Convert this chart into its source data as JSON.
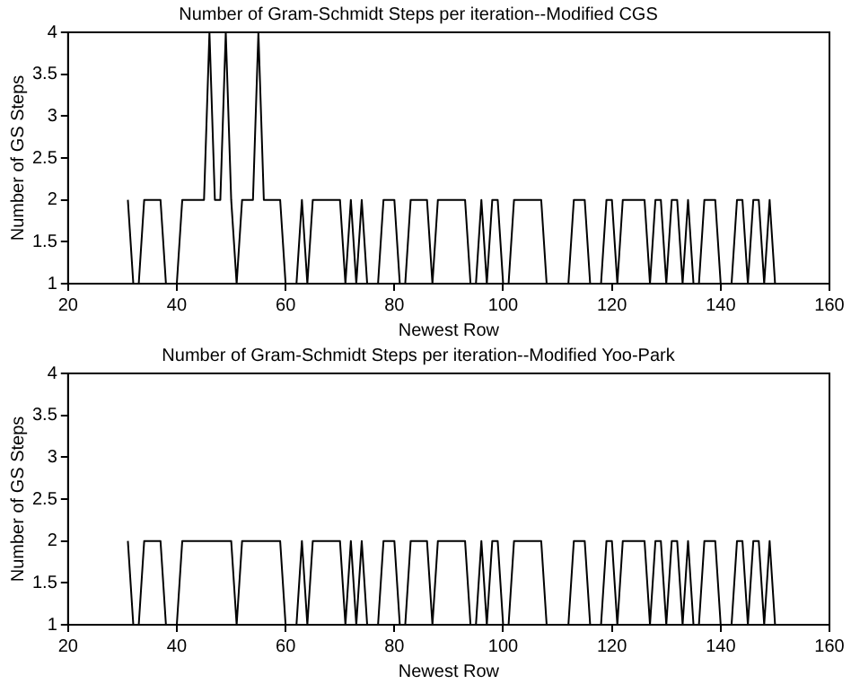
{
  "chart_data": [
    {
      "type": "line",
      "title": "Number of Gram-Schmidt Steps per iteration--Modified CGS",
      "xlabel": "Newest Row",
      "ylabel": "Number of GS Steps",
      "xlim": [
        20,
        160
      ],
      "xticks": [
        20,
        40,
        60,
        80,
        100,
        120,
        140,
        160
      ],
      "ylim": [
        1,
        4
      ],
      "yticks": [
        1,
        1.5,
        2,
        2.5,
        3,
        3.5,
        4
      ],
      "marker": "none",
      "line_style": "solid",
      "x": [
        31,
        32,
        33,
        34,
        35,
        36,
        37,
        38,
        39,
        40,
        41,
        42,
        43,
        44,
        45,
        46,
        47,
        48,
        49,
        50,
        51,
        52,
        53,
        54,
        55,
        56,
        57,
        58,
        59,
        60,
        61,
        62,
        63,
        64,
        65,
        66,
        67,
        68,
        69,
        70,
        71,
        72,
        73,
        74,
        75,
        76,
        77,
        78,
        79,
        80,
        81,
        82,
        83,
        84,
        85,
        86,
        87,
        88,
        89,
        90,
        91,
        92,
        93,
        94,
        95,
        96,
        97,
        98,
        99,
        100,
        101,
        102,
        103,
        104,
        105,
        106,
        107,
        108,
        109,
        110,
        111,
        112,
        113,
        114,
        115,
        116,
        117,
        118,
        119,
        120,
        121,
        122,
        123,
        124,
        125,
        126,
        127,
        128,
        129,
        130,
        131,
        132,
        133,
        134,
        135,
        136,
        137,
        138,
        139,
        140,
        141,
        142,
        143,
        144,
        145,
        146,
        147,
        148,
        149,
        150
      ],
      "series": [
        {
          "color": "#000000",
          "values": [
            2,
            1,
            1,
            2,
            2,
            2,
            2,
            1,
            1,
            1,
            2,
            2,
            2,
            2,
            2,
            4,
            2,
            2,
            4,
            2,
            1,
            2,
            2,
            2,
            4,
            2,
            2,
            2,
            2,
            1,
            1,
            1,
            2,
            1,
            2,
            2,
            2,
            2,
            2,
            2,
            1,
            2,
            1,
            2,
            1,
            1,
            1,
            2,
            2,
            2,
            1,
            1,
            2,
            2,
            2,
            2,
            1,
            2,
            2,
            2,
            2,
            2,
            2,
            1,
            1,
            2,
            1,
            2,
            2,
            1,
            1,
            2,
            2,
            2,
            2,
            2,
            2,
            1,
            1,
            1,
            1,
            1,
            2,
            2,
            2,
            1,
            1,
            1,
            2,
            2,
            1,
            2,
            2,
            2,
            2,
            2,
            1,
            2,
            2,
            1,
            2,
            2,
            1,
            2,
            1,
            1,
            2,
            2,
            2,
            1,
            1,
            1,
            2,
            2,
            1,
            2,
            2,
            1,
            2,
            1
          ]
        }
      ]
    },
    {
      "type": "line",
      "title": "Number of Gram-Schmidt Steps per iteration--Modified Yoo-Park",
      "xlabel": "Newest Row",
      "ylabel": "Number of GS Steps",
      "xlim": [
        20,
        160
      ],
      "xticks": [
        20,
        40,
        60,
        80,
        100,
        120,
        140,
        160
      ],
      "ylim": [
        1,
        4
      ],
      "yticks": [
        1,
        1.5,
        2,
        2.5,
        3,
        3.5,
        4
      ],
      "marker": "none",
      "line_style": "solid",
      "x": [
        31,
        32,
        33,
        34,
        35,
        36,
        37,
        38,
        39,
        40,
        41,
        42,
        43,
        44,
        45,
        46,
        47,
        48,
        49,
        50,
        51,
        52,
        53,
        54,
        55,
        56,
        57,
        58,
        59,
        60,
        61,
        62,
        63,
        64,
        65,
        66,
        67,
        68,
        69,
        70,
        71,
        72,
        73,
        74,
        75,
        76,
        77,
        78,
        79,
        80,
        81,
        82,
        83,
        84,
        85,
        86,
        87,
        88,
        89,
        90,
        91,
        92,
        93,
        94,
        95,
        96,
        97,
        98,
        99,
        100,
        101,
        102,
        103,
        104,
        105,
        106,
        107,
        108,
        109,
        110,
        111,
        112,
        113,
        114,
        115,
        116,
        117,
        118,
        119,
        120,
        121,
        122,
        123,
        124,
        125,
        126,
        127,
        128,
        129,
        130,
        131,
        132,
        133,
        134,
        135,
        136,
        137,
        138,
        139,
        140,
        141,
        142,
        143,
        144,
        145,
        146,
        147,
        148,
        149,
        150
      ],
      "series": [
        {
          "color": "#000000",
          "values": [
            2,
            1,
            1,
            2,
            2,
            2,
            2,
            1,
            1,
            1,
            2,
            2,
            2,
            2,
            2,
            2,
            2,
            2,
            2,
            2,
            1,
            2,
            2,
            2,
            2,
            2,
            2,
            2,
            2,
            1,
            1,
            1,
            2,
            1,
            2,
            2,
            2,
            2,
            2,
            2,
            1,
            2,
            1,
            2,
            1,
            1,
            1,
            2,
            2,
            2,
            1,
            1,
            2,
            2,
            2,
            2,
            1,
            2,
            2,
            2,
            2,
            2,
            2,
            1,
            1,
            2,
            1,
            2,
            2,
            1,
            1,
            2,
            2,
            2,
            2,
            2,
            2,
            1,
            1,
            1,
            1,
            1,
            2,
            2,
            2,
            1,
            1,
            1,
            2,
            2,
            1,
            2,
            2,
            2,
            2,
            2,
            1,
            2,
            2,
            1,
            2,
            2,
            1,
            2,
            1,
            1,
            2,
            2,
            2,
            1,
            1,
            1,
            2,
            2,
            1,
            2,
            2,
            1,
            2,
            1
          ]
        }
      ]
    }
  ]
}
